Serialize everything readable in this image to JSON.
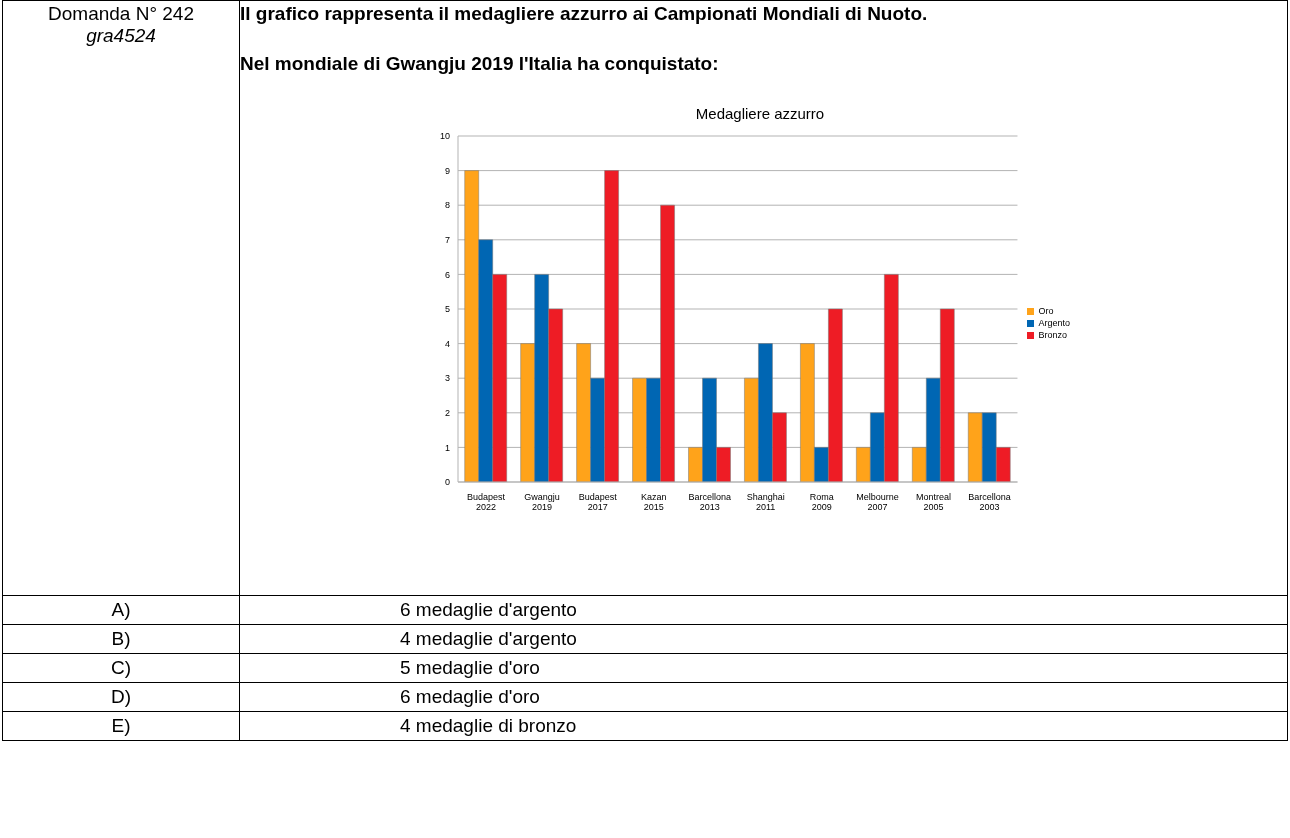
{
  "chart_data": {
    "type": "bar",
    "title": "Medagliere azzurro",
    "categories": [
      "Budapest 2022",
      "Gwangju 2019",
      "Budapest 2017",
      "Kazan 2015",
      "Barcellona 2013",
      "Shanghai 2011",
      "Roma 2009",
      "Melbourne 2007",
      "Montreal 2005",
      "Barcellona 2003"
    ],
    "series": [
      {
        "name": "Oro",
        "color": "#ffa31a",
        "values": [
          9,
          4,
          4,
          3,
          1,
          3,
          4,
          1,
          1,
          2
        ]
      },
      {
        "name": "Argento",
        "color": "#0066b3",
        "values": [
          7,
          6,
          3,
          3,
          3,
          4,
          1,
          2,
          3,
          2
        ]
      },
      {
        "name": "Bronzo",
        "color": "#ee1c25",
        "values": [
          6,
          5,
          9,
          8,
          1,
          2,
          5,
          6,
          5,
          1
        ]
      }
    ],
    "ylim": [
      0,
      10
    ],
    "yticks": [
      0,
      1,
      2,
      3,
      4,
      5,
      6,
      7,
      8,
      9,
      10
    ],
    "grid": "y",
    "legend": "right",
    "annotations": [
      "Domanda N° 242",
      "gra4524",
      "Il grafico rappresenta il medagliere azzurro ai Campionati Mondiali di Nuoto.",
      "Nel mondiale di Gwangju 2019 l'Italia ha conquistato:",
      "A)",
      "6 medaglie d'argento",
      "B)",
      "4 medaglie d'argento",
      "C)",
      "5 medaglie d'oro",
      "D)",
      "6 medaglie d'oro",
      "E)",
      "4 medaglie di bronzo"
    ]
  }
}
